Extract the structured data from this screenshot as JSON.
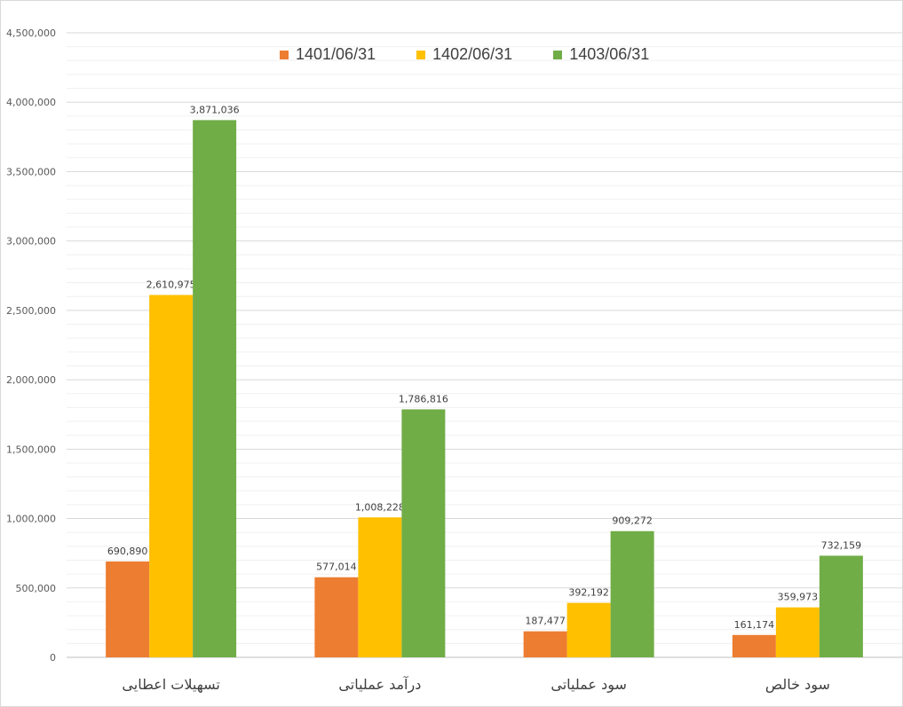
{
  "chart_data": {
    "type": "bar",
    "categories": [
      "تسهیلات اعطایی",
      "درآمد عملیاتی",
      "سود عملیاتی",
      "سود خالص"
    ],
    "series": [
      {
        "name": "1401/06/31",
        "color": "#ED7D31",
        "values": [
          690890,
          577014,
          187477,
          161174
        ],
        "labels": [
          "690,890",
          "577,014",
          "187,477",
          "161,174"
        ]
      },
      {
        "name": "1402/06/31",
        "color": "#FFC000",
        "values": [
          2610975,
          1008228,
          392192,
          359973
        ],
        "labels": [
          "2,610,975",
          "1,008,228",
          "392,192",
          "359,973"
        ]
      },
      {
        "name": "1403/06/31",
        "color": "#70AD47",
        "values": [
          3871036,
          1786816,
          909272,
          732159
        ],
        "labels": [
          "3,871,036",
          "1,786,816",
          "909,272",
          "732,159"
        ]
      }
    ],
    "yticks": [
      0,
      500000,
      1000000,
      1500000,
      2000000,
      2500000,
      3000000,
      3500000,
      4000000,
      4500000
    ],
    "ytick_labels": [
      "0",
      "500,000",
      "1,000,000",
      "1,500,000",
      "2,000,000",
      "2,500,000",
      "3,000,000",
      "3,500,000",
      "4,000,000",
      "4,500,000"
    ],
    "ylim": [
      0,
      4500000
    ],
    "minor_grid_step": 100000,
    "grid": true,
    "legend_position": "top-center",
    "title": "",
    "xlabel": "",
    "ylabel": ""
  }
}
